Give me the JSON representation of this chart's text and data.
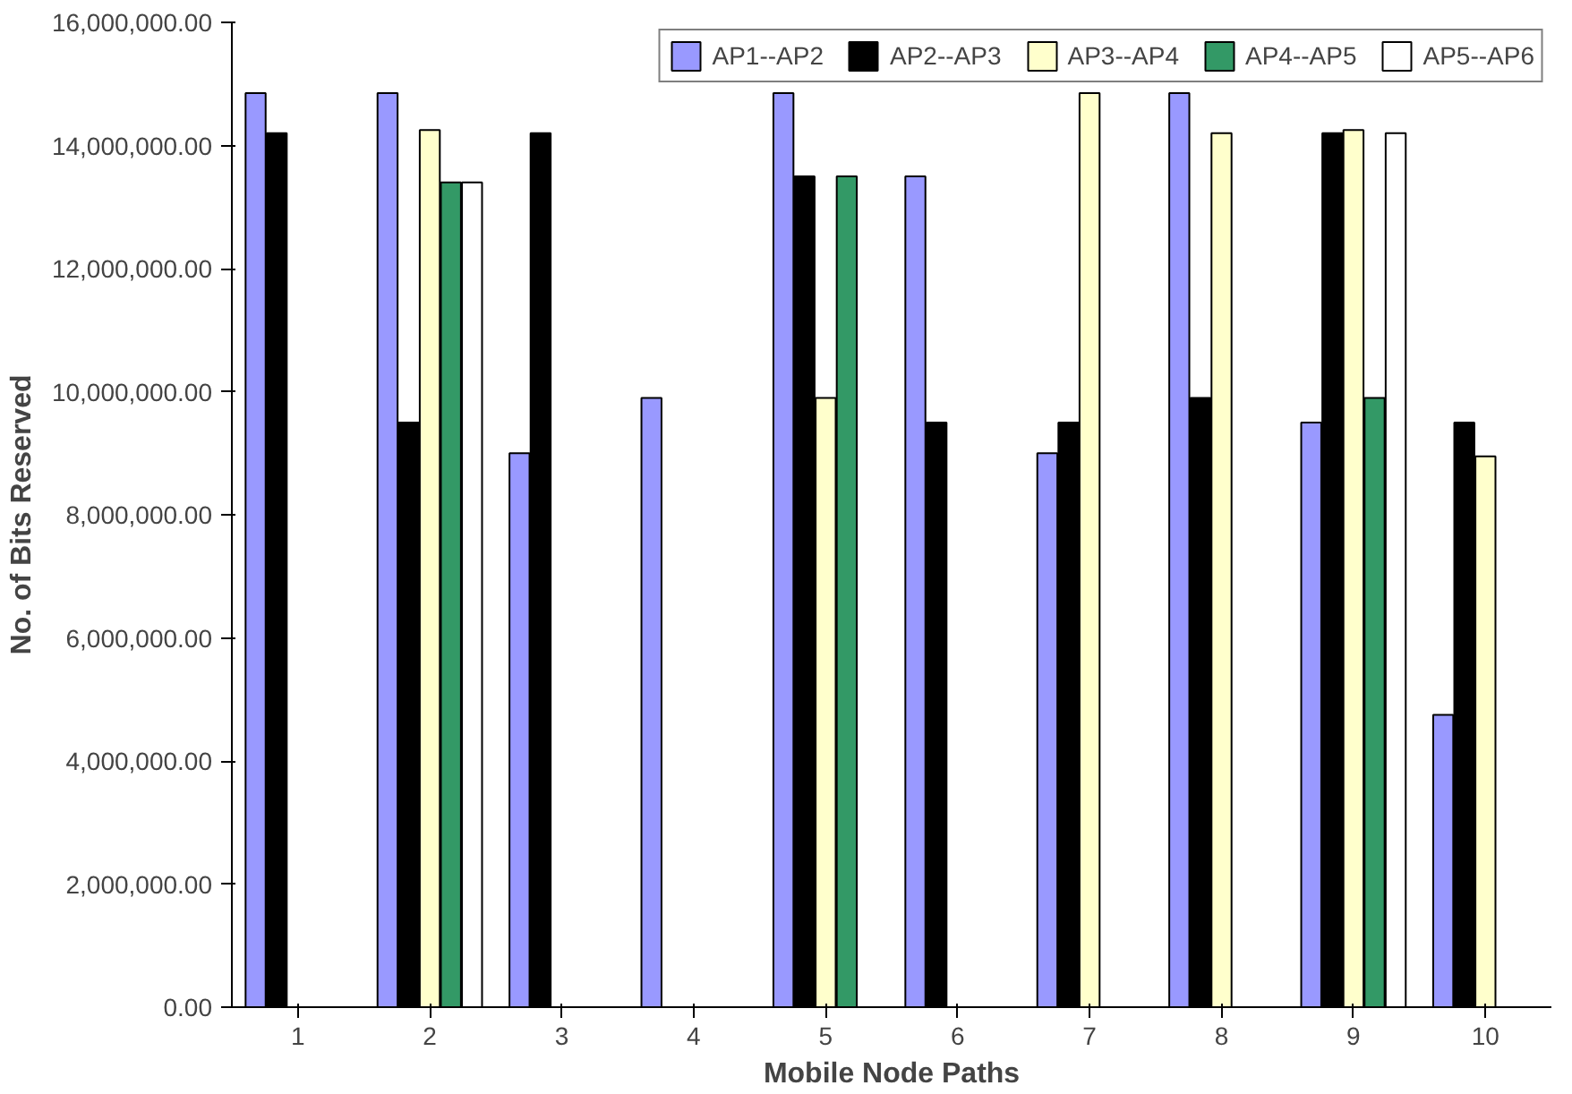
{
  "chart_data": {
    "type": "bar",
    "xlabel": "Mobile Node Paths",
    "ylabel": "No. of Bits Reserved",
    "categories": [
      "1",
      "2",
      "3",
      "4",
      "5",
      "6",
      "7",
      "8",
      "9",
      "10"
    ],
    "series": [
      {
        "name": "AP1--AP2",
        "color": "#9999ff",
        "values": [
          14850000,
          14850000,
          9000000,
          9900000,
          14850000,
          13500000,
          9000000,
          14850000,
          9500000,
          4750000
        ]
      },
      {
        "name": "AP2--AP3",
        "color": "#000000",
        "values": [
          14200000,
          9500000,
          14200000,
          null,
          13500000,
          9500000,
          9500000,
          9900000,
          14200000,
          9500000
        ]
      },
      {
        "name": "AP3--AP4",
        "color": "#ffffcc",
        "values": [
          null,
          14250000,
          null,
          null,
          9900000,
          null,
          14850000,
          14200000,
          14250000,
          8950000
        ]
      },
      {
        "name": "AP4--AP5",
        "color": "#339966",
        "values": [
          null,
          13400000,
          null,
          null,
          13500000,
          null,
          null,
          null,
          9900000,
          null
        ]
      },
      {
        "name": "AP5--AP6",
        "color": "#ffffff",
        "values": [
          null,
          13400000,
          null,
          null,
          null,
          null,
          null,
          null,
          14200000,
          null
        ]
      }
    ],
    "ylim": [
      0,
      16000000
    ],
    "yticks": [
      {
        "value": 0,
        "label": "0.00"
      },
      {
        "value": 2000000,
        "label": "2,000,000.00"
      },
      {
        "value": 4000000,
        "label": "4,000,000.00"
      },
      {
        "value": 6000000,
        "label": "6,000,000.00"
      },
      {
        "value": 8000000,
        "label": "8,000,000.00"
      },
      {
        "value": 10000000,
        "label": "10,000,000.00"
      },
      {
        "value": 12000000,
        "label": "12,000,000.00"
      },
      {
        "value": 14000000,
        "label": "14,000,000.00"
      },
      {
        "value": 16000000,
        "label": "16,000,000.00"
      }
    ],
    "grid": false,
    "legend": "top right"
  }
}
